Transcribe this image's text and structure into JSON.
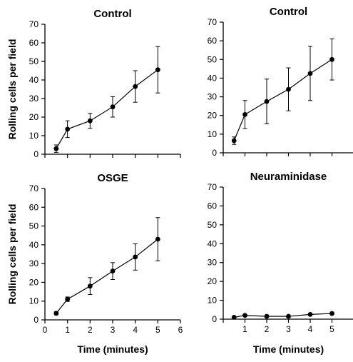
{
  "chart_data": [
    {
      "type": "line",
      "title": "Control",
      "xlabel": "",
      "ylabel": "Rolling cells per field",
      "xlim": [
        0,
        6
      ],
      "ylim": [
        0,
        70
      ],
      "x_ticks": [],
      "y_ticks": [
        0,
        10,
        20,
        30,
        40,
        50,
        60,
        70
      ],
      "grid": false,
      "series": [
        {
          "x": [
            0.5,
            1,
            2,
            3,
            4,
            5
          ],
          "y": [
            3,
            13.5,
            18,
            25.5,
            36.5,
            45.5
          ],
          "err": [
            2,
            4.5,
            4,
            5.5,
            8.5,
            12.5
          ]
        }
      ]
    },
    {
      "type": "line",
      "title": "Control",
      "xlabel": "",
      "ylabel": "",
      "xlim": [
        0,
        6
      ],
      "ylim": [
        0,
        70
      ],
      "x_ticks": [],
      "y_ticks": [
        0,
        10,
        20,
        30,
        40,
        50,
        60,
        70
      ],
      "grid": false,
      "series": [
        {
          "x": [
            0.5,
            1,
            2,
            3,
            4,
            5
          ],
          "y": [
            6.5,
            20.5,
            27.5,
            34,
            42.5,
            50
          ],
          "err": [
            2,
            7.5,
            12,
            11.5,
            14.5,
            11
          ]
        }
      ]
    },
    {
      "type": "line",
      "title": "OSGE",
      "xlabel": "Time (minutes)",
      "ylabel": "Rolling cells per field",
      "xlim": [
        0,
        6
      ],
      "ylim": [
        0,
        70
      ],
      "x_ticks": [
        0,
        1,
        2,
        3,
        4,
        5,
        6
      ],
      "y_ticks": [
        0,
        10,
        20,
        30,
        40,
        50,
        60,
        70
      ],
      "grid": false,
      "series": [
        {
          "x": [
            0.5,
            1,
            2,
            3,
            4,
            5
          ],
          "y": [
            3.5,
            11,
            18,
            26,
            33.5,
            43
          ],
          "err": [
            0.8,
            1.2,
            4.5,
            4.5,
            7,
            11.5
          ]
        }
      ]
    },
    {
      "type": "line",
      "title": "Neuraminidase",
      "xlabel": "Time (minutes)",
      "ylabel": "",
      "xlim": [
        0,
        6
      ],
      "ylim": [
        0,
        70
      ],
      "x_ticks": [
        1,
        2,
        3,
        4,
        5
      ],
      "y_ticks": [
        0,
        10,
        20,
        30,
        40,
        50,
        60,
        70
      ],
      "grid": false,
      "series": [
        {
          "x": [
            0.5,
            1,
            2,
            3,
            4,
            5
          ],
          "y": [
            1,
            2,
            1.5,
            1.5,
            2.5,
            3
          ],
          "err": [
            0.3,
            0.4,
            0.3,
            0.3,
            0.4,
            0.4
          ]
        }
      ]
    }
  ]
}
